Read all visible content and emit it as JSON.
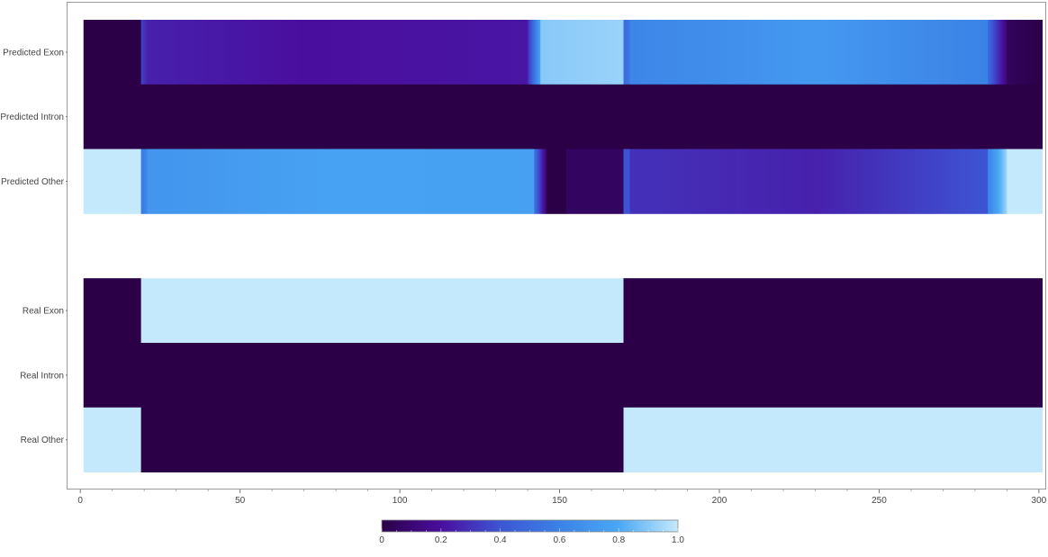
{
  "chart_data": {
    "type": "heatmap",
    "title": "",
    "xlabel": "",
    "ylabel": "",
    "xlim": [
      -4,
      302
    ],
    "x_ticks": [
      0,
      50,
      100,
      150,
      200,
      250,
      300
    ],
    "x_tick_labels": [
      "0",
      "50",
      "100",
      "150",
      "200",
      "250",
      "300"
    ],
    "grid": false,
    "legend": "colorbar-bottom",
    "colorbar": {
      "range": [
        0,
        1
      ],
      "ticks": [
        0,
        0.2,
        0.4,
        0.6,
        0.8,
        1.0
      ],
      "tick_labels": [
        "0",
        "0.2",
        "0.4",
        "0.6",
        "0.8",
        "1.0"
      ],
      "gradient_stops": [
        {
          "v": 0.0,
          "color": "#2b0047"
        },
        {
          "v": 0.2,
          "color": "#4a0e9e"
        },
        {
          "v": 0.4,
          "color": "#3d55d4"
        },
        {
          "v": 0.6,
          "color": "#3b82e6"
        },
        {
          "v": 0.8,
          "color": "#4aa8f5"
        },
        {
          "v": 1.0,
          "color": "#c5e9fc"
        }
      ]
    },
    "rows": [
      {
        "label": "Predicted Exon",
        "segments": [
          {
            "x0": 1,
            "x1": 19,
            "v0": 0.0,
            "v1": 0.0
          },
          {
            "x0": 19,
            "x1": 21,
            "v0": 0.35,
            "v1": 0.25
          },
          {
            "x0": 21,
            "x1": 70,
            "v0": 0.25,
            "v1": 0.2
          },
          {
            "x0": 70,
            "x1": 140,
            "v0": 0.2,
            "v1": 0.22
          },
          {
            "x0": 140,
            "x1": 144,
            "v0": 0.28,
            "v1": 0.8
          },
          {
            "x0": 144,
            "x1": 170,
            "v0": 0.9,
            "v1": 0.93
          },
          {
            "x0": 170,
            "x1": 172,
            "v0": 0.5,
            "v1": 0.55
          },
          {
            "x0": 172,
            "x1": 230,
            "v0": 0.62,
            "v1": 0.72
          },
          {
            "x0": 230,
            "x1": 284,
            "v0": 0.72,
            "v1": 0.6
          },
          {
            "x0": 284,
            "x1": 290,
            "v0": 0.5,
            "v1": 0.1
          },
          {
            "x0": 290,
            "x1": 301,
            "v0": 0.05,
            "v1": 0.0
          }
        ]
      },
      {
        "label": "Predicted Intron",
        "segments": [
          {
            "x0": 1,
            "x1": 301,
            "v0": 0.0,
            "v1": 0.0
          }
        ]
      },
      {
        "label": "Predicted Other",
        "segments": [
          {
            "x0": 1,
            "x1": 19,
            "v0": 1.0,
            "v1": 1.0
          },
          {
            "x0": 19,
            "x1": 21,
            "v0": 0.55,
            "v1": 0.65
          },
          {
            "x0": 21,
            "x1": 80,
            "v0": 0.7,
            "v1": 0.77
          },
          {
            "x0": 80,
            "x1": 142,
            "v0": 0.77,
            "v1": 0.76
          },
          {
            "x0": 142,
            "x1": 146,
            "v0": 0.55,
            "v1": 0.05
          },
          {
            "x0": 146,
            "x1": 152,
            "v0": 0.0,
            "v1": 0.0
          },
          {
            "x0": 152,
            "x1": 170,
            "v0": 0.06,
            "v1": 0.06
          },
          {
            "x0": 170,
            "x1": 172,
            "v0": 0.4,
            "v1": 0.38
          },
          {
            "x0": 172,
            "x1": 230,
            "v0": 0.3,
            "v1": 0.25
          },
          {
            "x0": 230,
            "x1": 284,
            "v0": 0.25,
            "v1": 0.4
          },
          {
            "x0": 284,
            "x1": 290,
            "v0": 0.6,
            "v1": 0.95
          },
          {
            "x0": 290,
            "x1": 301,
            "v0": 1.0,
            "v1": 1.0
          }
        ]
      },
      {
        "label": "",
        "segments": []
      },
      {
        "label": "Real Exon",
        "segments": [
          {
            "x0": 1,
            "x1": 19,
            "v0": 0.0,
            "v1": 0.0
          },
          {
            "x0": 19,
            "x1": 170,
            "v0": 1.0,
            "v1": 1.0
          },
          {
            "x0": 170,
            "x1": 301,
            "v0": 0.0,
            "v1": 0.0
          }
        ]
      },
      {
        "label": "Real Intron",
        "segments": [
          {
            "x0": 1,
            "x1": 301,
            "v0": 0.0,
            "v1": 0.0
          }
        ]
      },
      {
        "label": "Real Other",
        "segments": [
          {
            "x0": 1,
            "x1": 19,
            "v0": 1.0,
            "v1": 1.0
          },
          {
            "x0": 19,
            "x1": 170,
            "v0": 0.0,
            "v1": 0.0
          },
          {
            "x0": 170,
            "x1": 301,
            "v0": 1.0,
            "v1": 1.0
          }
        ]
      }
    ]
  }
}
